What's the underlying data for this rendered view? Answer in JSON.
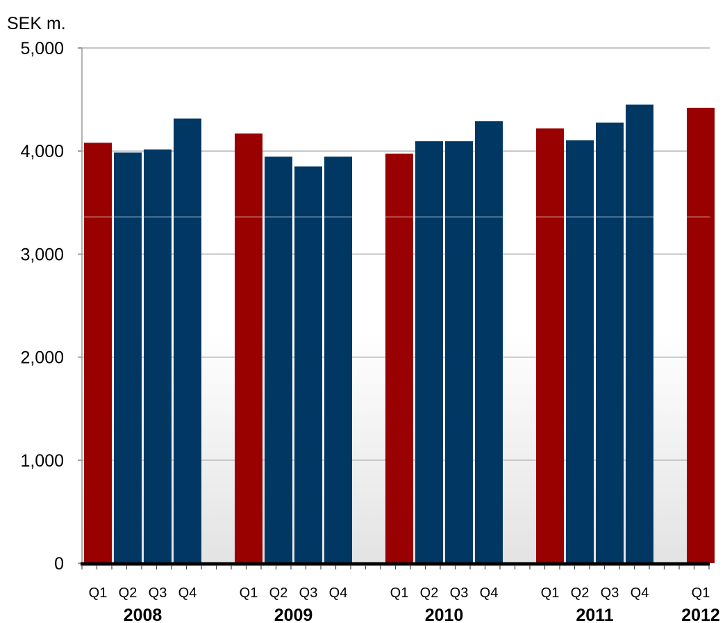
{
  "chart_data": {
    "type": "bar",
    "unit_label": "SEK m.",
    "ylim": [
      0,
      5000
    ],
    "yticks": [
      "0",
      "1,000",
      "2,000",
      "3,000",
      "4,000",
      "5,000"
    ],
    "ytick_values": [
      0,
      1000,
      2000,
      3000,
      4000,
      5000
    ],
    "grid": true,
    "groups": [
      {
        "year": "2008",
        "bars": [
          {
            "q": "Q1",
            "value": 4080,
            "highlight": true
          },
          {
            "q": "Q2",
            "value": 3985,
            "highlight": false
          },
          {
            "q": "Q3",
            "value": 4015,
            "highlight": false
          },
          {
            "q": "Q4",
            "value": 4315,
            "highlight": false
          }
        ]
      },
      {
        "year": "2009",
        "bars": [
          {
            "q": "Q1",
            "value": 4170,
            "highlight": true
          },
          {
            "q": "Q2",
            "value": 3945,
            "highlight": false
          },
          {
            "q": "Q3",
            "value": 3850,
            "highlight": false
          },
          {
            "q": "Q4",
            "value": 3945,
            "highlight": false
          }
        ]
      },
      {
        "year": "2010",
        "bars": [
          {
            "q": "Q1",
            "value": 3975,
            "highlight": true
          },
          {
            "q": "Q2",
            "value": 4095,
            "highlight": false
          },
          {
            "q": "Q3",
            "value": 4095,
            "highlight": false
          },
          {
            "q": "Q4",
            "value": 4290,
            "highlight": false
          }
        ]
      },
      {
        "year": "2011",
        "bars": [
          {
            "q": "Q1",
            "value": 4220,
            "highlight": true
          },
          {
            "q": "Q2",
            "value": 4105,
            "highlight": false
          },
          {
            "q": "Q3",
            "value": 4275,
            "highlight": false
          },
          {
            "q": "Q4",
            "value": 4450,
            "highlight": false
          }
        ]
      },
      {
        "year": "2012",
        "bars": [
          {
            "q": "Q1",
            "value": 4420,
            "highlight": true
          }
        ]
      }
    ],
    "colors": {
      "highlight": "#990000",
      "default": "#003863",
      "grid": "#b0b0b0",
      "axis": "#000000"
    }
  }
}
